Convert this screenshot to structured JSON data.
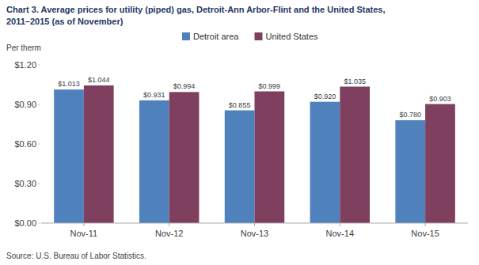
{
  "chart_data": {
    "type": "bar",
    "title": "Chart 3. Average prices for utility (piped) gas, Detroit-Ann Arbor-Flint and the United States,",
    "subtitle": "2011–2015  (as of November)",
    "y_label": "Per therm",
    "source": "Source: U.S. Bureau of Labor Statistics.",
    "categories": [
      "Nov-11",
      "Nov-12",
      "Nov-13",
      "Nov-14",
      "Nov-15"
    ],
    "series": [
      {
        "name": "Detroit area",
        "color": "#4F81BD",
        "values": [
          1.013,
          0.931,
          0.855,
          0.92,
          0.78
        ],
        "value_labels": [
          "$1.013",
          "$0.931",
          "$0.855",
          "$0.920",
          "$0.780"
        ]
      },
      {
        "name": "United States",
        "color": "#7F3F5F",
        "values": [
          1.044,
          0.994,
          0.999,
          1.035,
          0.903
        ],
        "value_labels": [
          "$1.044",
          "$0.994",
          "$0.999",
          "$1.035",
          "$0.903"
        ]
      }
    ],
    "ylim": [
      0.0,
      1.2
    ],
    "yticks": [
      {
        "value": 0.0,
        "label": "$0.00"
      },
      {
        "value": 0.3,
        "label": "$0.30"
      },
      {
        "value": 0.6,
        "label": "$0.60"
      },
      {
        "value": 0.9,
        "label": "$0.90"
      },
      {
        "value": 1.2,
        "label": "$1.20"
      }
    ],
    "grid": false,
    "legend": "top",
    "data_labels": true
  }
}
